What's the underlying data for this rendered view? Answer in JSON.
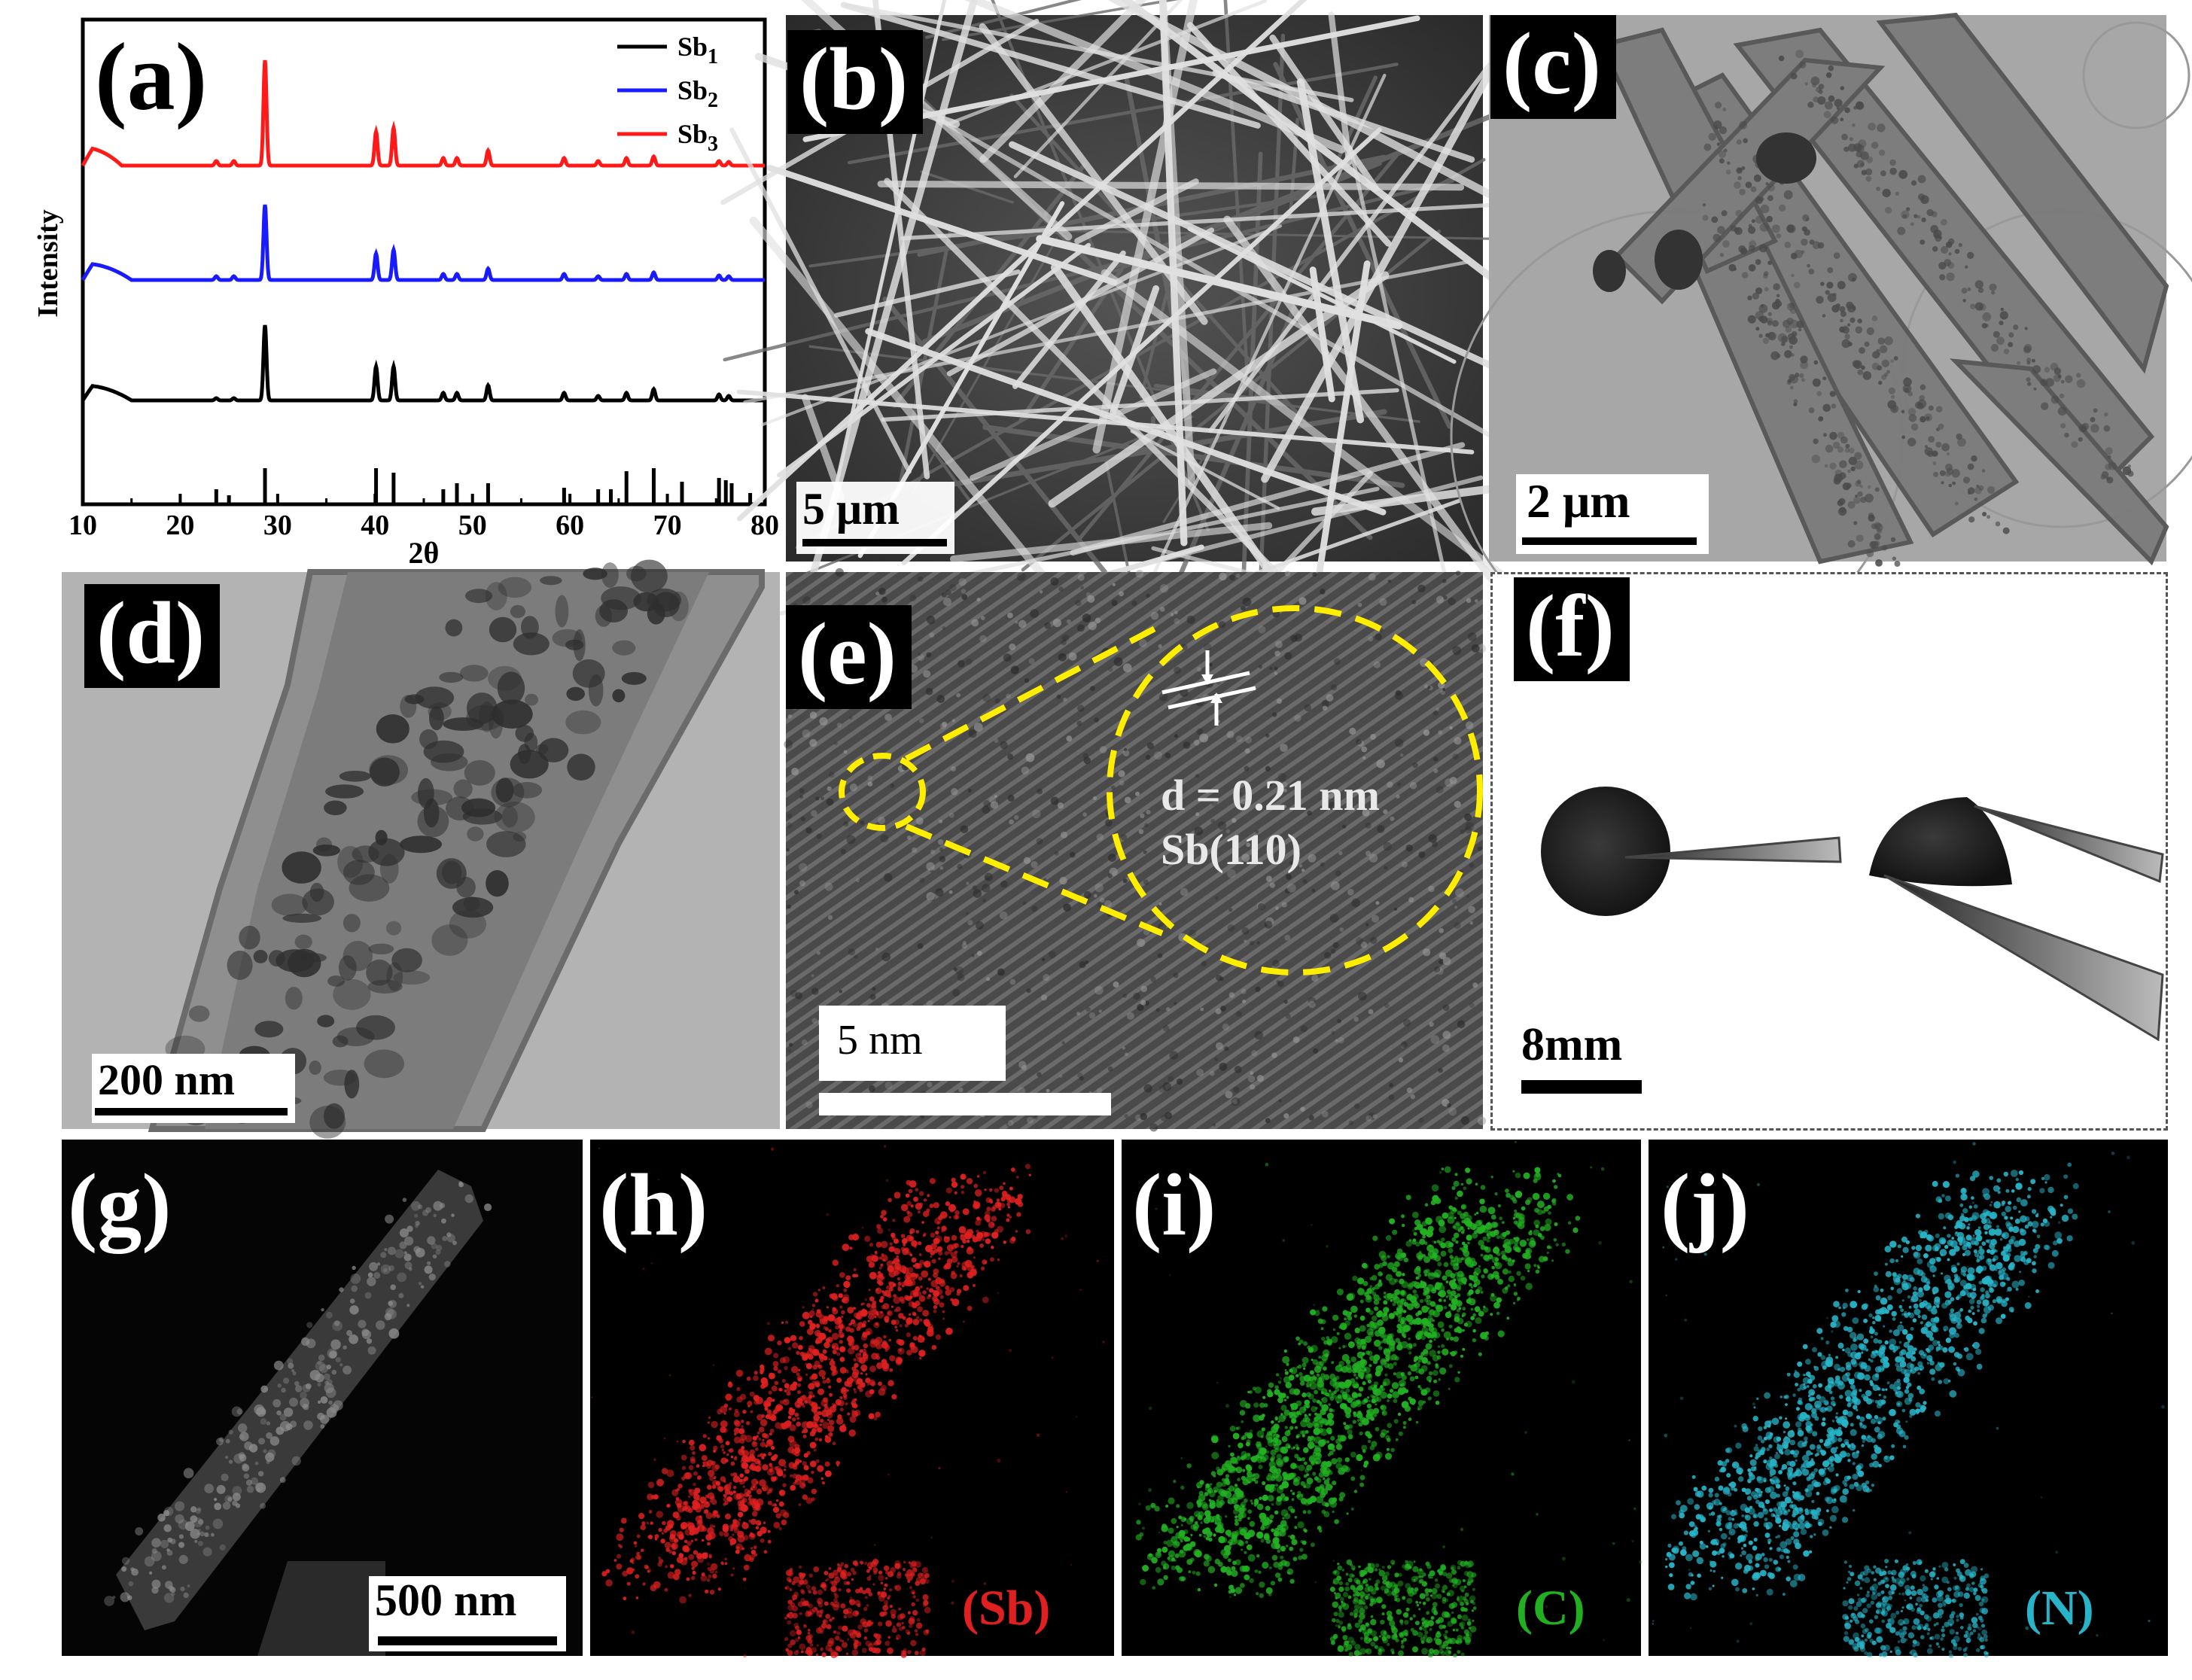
{
  "panels": {
    "a": {
      "label": "(a)"
    },
    "b": {
      "label": "(b)",
      "scale": "5 μm"
    },
    "c": {
      "label": "(c)",
      "scale": "2 μm"
    },
    "d": {
      "label": "(d)",
      "scale": "200 nm"
    },
    "e": {
      "label": "(e)",
      "scale": "5 nm",
      "d_spacing": "d = 0.21 nm",
      "plane": "Sb(110)"
    },
    "f": {
      "label": "(f)",
      "scale": "8mm"
    },
    "g": {
      "label": "(g)",
      "scale": "500 nm"
    },
    "h": {
      "label": "(h)",
      "element": "(Sb)"
    },
    "i": {
      "label": "(i)",
      "element": "(C)"
    },
    "j": {
      "label": "(j)",
      "element": "(N)"
    }
  },
  "colors": {
    "sb1": "#000000",
    "sb2": "#1a1aff",
    "sb3": "#ff1a1a",
    "sb_map": "#e02020",
    "c_map": "#22b022",
    "n_map": "#28b4c8"
  },
  "chart_data": {
    "type": "line",
    "xlabel": "2θ",
    "ylabel": "Intensity",
    "xlim": [
      10,
      80
    ],
    "xticks": [
      10,
      20,
      30,
      40,
      50,
      60,
      70,
      80
    ],
    "legend_position": "top-right",
    "series": [
      {
        "name": "Sb1",
        "name_base": "Sb",
        "name_sub": "1",
        "color": "#000000",
        "offset": 0,
        "base_start": 20,
        "base_end": 0,
        "bump_end": 15,
        "peaks": [
          [
            23.7,
            3
          ],
          [
            25.5,
            3
          ],
          [
            28.7,
            100
          ],
          [
            40.1,
            45
          ],
          [
            41.9,
            45
          ],
          [
            47.0,
            10
          ],
          [
            48.4,
            10
          ],
          [
            51.6,
            20
          ],
          [
            59.4,
            10
          ],
          [
            62.9,
            6
          ],
          [
            65.8,
            10
          ],
          [
            68.6,
            15
          ],
          [
            75.3,
            8
          ],
          [
            76.3,
            6
          ]
        ]
      },
      {
        "name": "Sb2",
        "name_base": "Sb",
        "name_sub": "2",
        "color": "#1a1aff",
        "offset": 160,
        "base_start": 22,
        "base_end": 0,
        "bump_end": 15,
        "peaks": [
          [
            23.7,
            5
          ],
          [
            25.5,
            5
          ],
          [
            28.7,
            100
          ],
          [
            40.1,
            35
          ],
          [
            41.9,
            40
          ],
          [
            47.0,
            8
          ],
          [
            48.4,
            8
          ],
          [
            51.6,
            15
          ],
          [
            59.4,
            8
          ],
          [
            62.9,
            5
          ],
          [
            65.8,
            8
          ],
          [
            68.6,
            10
          ],
          [
            75.3,
            6
          ],
          [
            76.3,
            5
          ]
        ]
      },
      {
        "name": "Sb3",
        "name_base": "Sb",
        "name_sub": "3",
        "color": "#ff1a1a",
        "offset": 320,
        "base_start": 24,
        "base_end": 0,
        "bump_end": 14,
        "peaks": [
          [
            23.7,
            6
          ],
          [
            25.5,
            6
          ],
          [
            28.7,
            140
          ],
          [
            40.1,
            45
          ],
          [
            41.9,
            50
          ],
          [
            47.0,
            10
          ],
          [
            48.4,
            10
          ],
          [
            51.6,
            20
          ],
          [
            59.4,
            10
          ],
          [
            62.9,
            6
          ],
          [
            65.8,
            10
          ],
          [
            68.6,
            12
          ],
          [
            75.3,
            6
          ],
          [
            76.3,
            5
          ]
        ]
      }
    ],
    "reference_peaks": [
      [
        23.7,
        20
      ],
      [
        25.0,
        12
      ],
      [
        28.7,
        48
      ],
      [
        40.1,
        48
      ],
      [
        41.9,
        42
      ],
      [
        47.0,
        20
      ],
      [
        48.4,
        28
      ],
      [
        51.6,
        28
      ],
      [
        59.4,
        22
      ],
      [
        62.9,
        20
      ],
      [
        64.2,
        20
      ],
      [
        65.8,
        44
      ],
      [
        68.6,
        48
      ],
      [
        71.5,
        30
      ],
      [
        75.3,
        35
      ],
      [
        76.0,
        32
      ],
      [
        76.6,
        28
      ],
      [
        78.5,
        15
      ]
    ]
  }
}
